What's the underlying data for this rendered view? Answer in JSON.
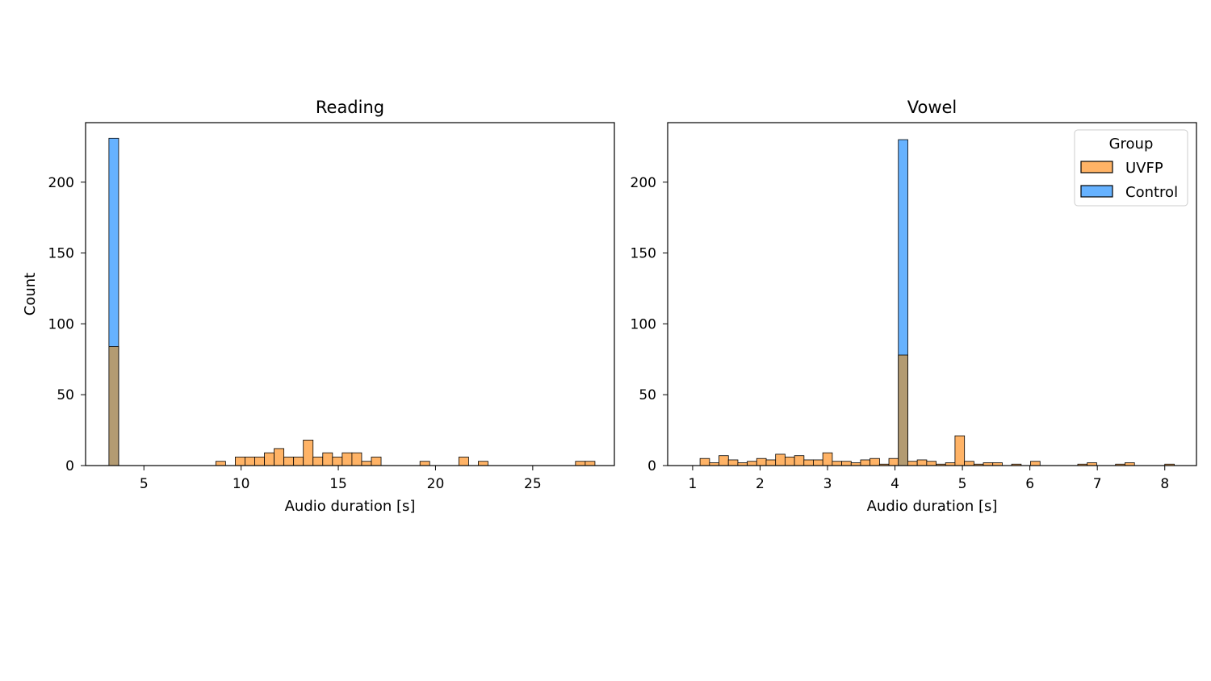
{
  "colors": {
    "uvfp": "#ffb366",
    "control": "#66b2ff",
    "overlap": "#b39b72",
    "edge": "#000000",
    "legend_border": "#cccccc"
  },
  "legend": {
    "title": "Group",
    "placement": "upper-right of Vowel panel",
    "entries": [
      {
        "label": "UVFP",
        "color": "#ffb366"
      },
      {
        "label": "Control",
        "color": "#66b2ff"
      }
    ]
  },
  "chart_data": [
    {
      "type": "histogram",
      "title": "Reading",
      "xlabel": "Audio duration [s]",
      "ylabel": "Count",
      "xlim": [
        2.0,
        29.2
      ],
      "ylim": [
        0,
        242
      ],
      "xticks": [
        5,
        10,
        15,
        20,
        25
      ],
      "yticks": [
        0,
        50,
        100,
        150,
        200
      ],
      "grid": false,
      "bin_width": 0.5,
      "series": [
        {
          "name": "UVFP",
          "bins": [
            [
              3.2,
              84
            ],
            [
              8.7,
              3
            ],
            [
              9.7,
              6
            ],
            [
              10.2,
              6
            ],
            [
              10.7,
              6
            ],
            [
              11.2,
              9
            ],
            [
              11.7,
              12
            ],
            [
              12.2,
              6
            ],
            [
              12.7,
              6
            ],
            [
              13.2,
              18
            ],
            [
              13.7,
              6
            ],
            [
              14.2,
              9
            ],
            [
              14.7,
              6
            ],
            [
              15.2,
              9
            ],
            [
              15.7,
              9
            ],
            [
              16.2,
              3
            ],
            [
              16.7,
              6
            ],
            [
              19.2,
              3
            ],
            [
              21.2,
              6
            ],
            [
              22.2,
              3
            ],
            [
              27.2,
              3
            ],
            [
              27.7,
              3
            ]
          ]
        },
        {
          "name": "Control",
          "bins": [
            [
              3.2,
              231
            ]
          ]
        }
      ]
    },
    {
      "type": "histogram",
      "title": "Vowel",
      "xlabel": "Audio duration [s]",
      "ylabel": "",
      "xlim": [
        0.63,
        8.47
      ],
      "ylim": [
        0,
        242
      ],
      "xticks": [
        1,
        2,
        3,
        4,
        5,
        6,
        7,
        8
      ],
      "yticks": [
        0,
        50,
        100,
        150,
        200
      ],
      "grid": false,
      "bin_width": 0.141,
      "series": [
        {
          "name": "UVFP",
          "bins": [
            [
              1.11,
              5
            ],
            [
              1.25,
              2
            ],
            [
              1.39,
              7
            ],
            [
              1.53,
              4
            ],
            [
              1.67,
              2
            ],
            [
              1.81,
              3
            ],
            [
              1.95,
              5
            ],
            [
              2.09,
              4
            ],
            [
              2.23,
              8
            ],
            [
              2.37,
              6
            ],
            [
              2.51,
              7
            ],
            [
              2.65,
              4
            ],
            [
              2.79,
              4
            ],
            [
              2.93,
              9
            ],
            [
              3.07,
              3
            ],
            [
              3.21,
              3
            ],
            [
              3.35,
              2
            ],
            [
              3.49,
              4
            ],
            [
              3.63,
              5
            ],
            [
              3.77,
              1
            ],
            [
              3.91,
              5
            ],
            [
              4.05,
              78
            ],
            [
              4.19,
              3
            ],
            [
              4.33,
              4
            ],
            [
              4.47,
              3
            ],
            [
              4.61,
              1
            ],
            [
              4.75,
              2
            ],
            [
              4.89,
              21
            ],
            [
              5.03,
              3
            ],
            [
              5.17,
              1
            ],
            [
              5.31,
              2
            ],
            [
              5.45,
              2
            ],
            [
              5.73,
              1
            ],
            [
              6.01,
              3
            ],
            [
              6.71,
              1
            ],
            [
              6.85,
              2
            ],
            [
              7.27,
              1
            ],
            [
              7.41,
              2
            ],
            [
              8.0,
              1
            ]
          ]
        },
        {
          "name": "Control",
          "bins": [
            [
              4.05,
              230
            ]
          ]
        }
      ]
    }
  ]
}
